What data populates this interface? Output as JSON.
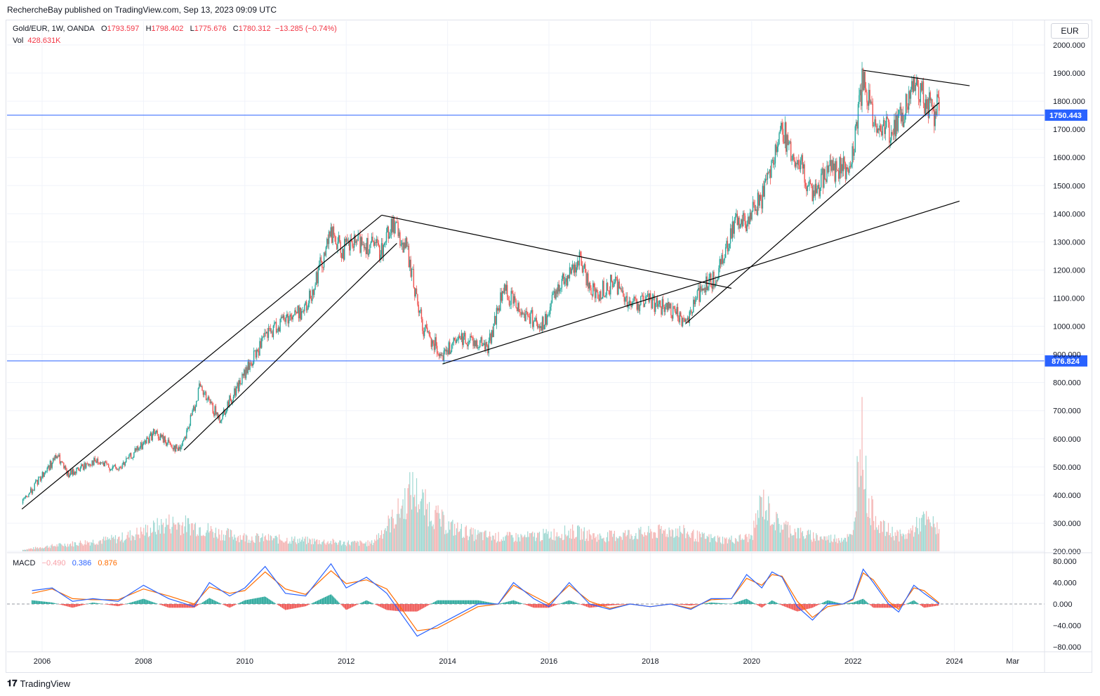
{
  "header": {
    "published": "RechercheBay published on TradingView.com, Sep 13, 2023 09:09 UTC"
  },
  "legend": {
    "symbol": "Gold/EUR, 1W, OANDA",
    "o_label": "O",
    "o": "1793.597",
    "h_label": "H",
    "h": "1798.402",
    "l_label": "L",
    "l": "1775.676",
    "c_label": "C",
    "c": "1780.312",
    "change": "−13.285 (−0.74%)",
    "vol_label": "Vol",
    "vol": "428.631K"
  },
  "currency": "EUR",
  "macd_legend": {
    "label": "MACD",
    "hist": "−0.490",
    "macd": "0.386",
    "signal": "0.876"
  },
  "footer": {
    "brand": "TradingView"
  },
  "colors": {
    "up": "#26a69a",
    "down": "#ef5350",
    "hline": "#2962ff",
    "macd": "#2962ff",
    "signal": "#ff6d00"
  },
  "chart_data": {
    "type": "line",
    "title": "Gold/EUR, 1W, OANDA",
    "xlabel": "",
    "ylabel": "",
    "x_ticks": [
      "2006",
      "2008",
      "2010",
      "2012",
      "2014",
      "2016",
      "2018",
      "2020",
      "2022",
      "2024",
      "Mar"
    ],
    "y_ticks": [
      "2000.000",
      "1900.000",
      "1800.000",
      "1700.000",
      "1600.000",
      "1500.000",
      "1400.000",
      "1300.000",
      "1200.000",
      "1100.000",
      "1000.000",
      "900.000",
      "800.000",
      "700.000",
      "600.000",
      "500.000",
      "400.000",
      "300.000",
      "200.000"
    ],
    "ylim": [
      200,
      2000
    ],
    "price_series": {
      "name": "Gold/EUR",
      "x": [
        2005.6,
        2006.0,
        2006.3,
        2006.5,
        2007.0,
        2007.5,
        2008.2,
        2008.7,
        2008.9,
        2009.1,
        2009.5,
        2010.0,
        2010.4,
        2010.8,
        2011.2,
        2011.7,
        2011.9,
        2012.3,
        2012.7,
        2012.9,
        2013.2,
        2013.5,
        2013.9,
        2014.3,
        2014.8,
        2015.1,
        2015.5,
        2015.9,
        2016.2,
        2016.6,
        2016.9,
        2017.3,
        2017.6,
        2018.0,
        2018.3,
        2018.7,
        2019.0,
        2019.3,
        2019.6,
        2019.9,
        2020.2,
        2020.4,
        2020.6,
        2020.8,
        2021.0,
        2021.2,
        2021.5,
        2021.9,
        2022.0,
        2022.2,
        2022.4,
        2022.7,
        2022.8,
        2023.0,
        2023.2,
        2023.4,
        2023.6,
        2023.7
      ],
      "values": [
        370,
        470,
        540,
        470,
        520,
        490,
        620,
        560,
        650,
        780,
        670,
        830,
        960,
        1030,
        1060,
        1330,
        1270,
        1300,
        1270,
        1370,
        1270,
        1000,
        900,
        960,
        930,
        1130,
        1050,
        1000,
        1150,
        1230,
        1110,
        1160,
        1080,
        1090,
        1060,
        1020,
        1130,
        1170,
        1350,
        1380,
        1460,
        1590,
        1710,
        1600,
        1560,
        1450,
        1560,
        1560,
        1630,
        1890,
        1720,
        1700,
        1690,
        1760,
        1860,
        1810,
        1760,
        1780
      ]
    },
    "horizontal_levels": [
      1750.443,
      876.824
    ],
    "trendlines": [
      {
        "from": [
          "2005.6",
          350
        ],
        "to": [
          "2012.7",
          1395
        ]
      },
      {
        "from": [
          "2008.8",
          560
        ],
        "to": [
          "2013.0",
          1295
        ]
      },
      {
        "from": [
          "2012.7",
          1395
        ],
        "to": [
          "2019.6",
          1135
        ]
      },
      {
        "from": [
          "2018.7",
          1010
        ],
        "to": [
          "2023.7",
          1795
        ]
      },
      {
        "from": [
          "2022.2",
          1910
        ],
        "to": [
          "2024.3",
          1855
        ]
      },
      {
        "from": [
          "2013.9",
          866
        ],
        "to": [
          "2024.1",
          1445
        ]
      }
    ],
    "volume": {
      "name": "Vol",
      "x": [
        2005.6,
        2006.0,
        2006.5,
        2007.0,
        2007.5,
        2008.0,
        2008.5,
        2009.0,
        2009.5,
        2010.0,
        2010.5,
        2011.0,
        2011.5,
        2012.0,
        2012.5,
        2013.0,
        2013.3,
        2013.6,
        2014.0,
        2014.5,
        2015.0,
        2015.5,
        2016.0,
        2016.5,
        2017.0,
        2017.5,
        2018.0,
        2018.5,
        2019.0,
        2019.5,
        2020.0,
        2020.2,
        2020.5,
        2021.0,
        2021.5,
        2022.0,
        2022.15,
        2022.3,
        2022.6,
        2023.0,
        2023.4,
        2023.6
      ],
      "values": [
        205,
        215,
        225,
        235,
        245,
        270,
        300,
        290,
        265,
        250,
        245,
        240,
        235,
        230,
        228,
        330,
        420,
        350,
        290,
        260,
        250,
        250,
        260,
        270,
        250,
        260,
        265,
        275,
        250,
        240,
        250,
        380,
        300,
        260,
        245,
        250,
        660,
        360,
        280,
        250,
        310,
        290
      ]
    },
    "macd": {
      "ylim": [
        -90,
        90
      ],
      "y_ticks": [
        "80.000",
        "40.000",
        "0.000",
        "−40.000",
        "−80.000"
      ],
      "x": [
        2005.8,
        2006.2,
        2006.6,
        2007.0,
        2007.5,
        2008.0,
        2008.5,
        2009.0,
        2009.3,
        2009.7,
        2010.0,
        2010.4,
        2010.8,
        2011.2,
        2011.7,
        2012.0,
        2012.4,
        2012.8,
        2013.1,
        2013.4,
        2013.8,
        2014.2,
        2014.6,
        2015.0,
        2015.3,
        2015.7,
        2016.0,
        2016.4,
        2016.8,
        2017.2,
        2017.6,
        2018.0,
        2018.4,
        2018.8,
        2019.2,
        2019.6,
        2019.9,
        2020.2,
        2020.4,
        2020.6,
        2020.9,
        2021.2,
        2021.5,
        2021.8,
        2022.0,
        2022.2,
        2022.4,
        2022.7,
        2022.9,
        2023.2,
        2023.4,
        2023.7
      ],
      "macd": [
        25,
        30,
        5,
        10,
        5,
        35,
        10,
        -5,
        40,
        15,
        30,
        70,
        20,
        15,
        75,
        30,
        50,
        20,
        -20,
        -60,
        -40,
        -20,
        0,
        0,
        40,
        10,
        -5,
        40,
        0,
        -10,
        0,
        -5,
        0,
        -10,
        10,
        10,
        55,
        30,
        60,
        50,
        -5,
        -30,
        0,
        0,
        10,
        65,
        40,
        0,
        -15,
        35,
        20,
        0
      ],
      "signal": [
        20,
        28,
        10,
        8,
        8,
        28,
        15,
        0,
        32,
        20,
        25,
        60,
        28,
        18,
        62,
        38,
        45,
        28,
        -10,
        -50,
        -45,
        -25,
        -5,
        0,
        35,
        15,
        0,
        35,
        5,
        -8,
        0,
        -5,
        0,
        -8,
        8,
        10,
        48,
        35,
        55,
        52,
        5,
        -25,
        -5,
        0,
        8,
        58,
        45,
        5,
        -10,
        30,
        25,
        2
      ],
      "histogram": "bars"
    }
  }
}
